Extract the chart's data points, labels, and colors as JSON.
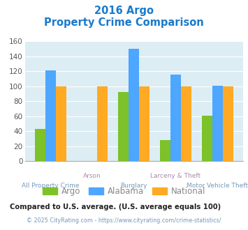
{
  "title_line1": "2016 Argo",
  "title_line2": "Property Crime Comparison",
  "categories": [
    "All Property Crime",
    "Arson",
    "Burglary",
    "Larceny & Theft",
    "Motor Vehicle Theft"
  ],
  "argo_values": [
    43,
    0,
    92,
    28,
    61
  ],
  "alabama_values": [
    121,
    0,
    150,
    116,
    101
  ],
  "national_values": [
    100,
    100,
    100,
    100,
    100
  ],
  "argo_color": "#7cc228",
  "alabama_color": "#4da6ff",
  "national_color": "#ffaa22",
  "ylim": [
    0,
    160
  ],
  "yticks": [
    0,
    20,
    40,
    60,
    80,
    100,
    120,
    140,
    160
  ],
  "plot_bg_color": "#ddedf4",
  "title_color": "#1a7acc",
  "xlabel_color_odd": "#aa88aa",
  "xlabel_color_even": "#7799bb",
  "footnote1": "Compared to U.S. average. (U.S. average equals 100)",
  "footnote2": "© 2025 CityRating.com - https://www.cityrating.com/crime-statistics/",
  "footnote1_color": "#222222",
  "footnote2_color": "#7799bb",
  "legend_label_color": "#888888"
}
